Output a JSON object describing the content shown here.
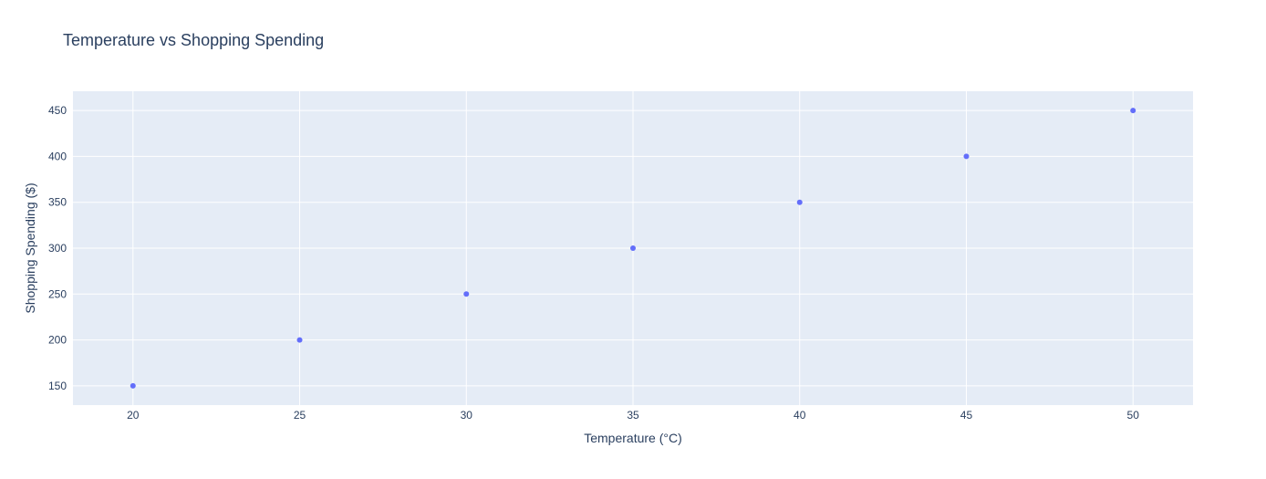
{
  "chart_data": {
    "type": "scatter",
    "title": "Temperature vs Shopping Spending",
    "xlabel": "Temperature (°C)",
    "ylabel": "Shopping Spending ($)",
    "x": [
      20,
      25,
      30,
      35,
      40,
      45,
      50
    ],
    "y": [
      150,
      200,
      250,
      300,
      350,
      400,
      450
    ],
    "xlim": [
      18.2,
      51.8
    ],
    "ylim": [
      129,
      471
    ],
    "x_ticks": [
      20,
      25,
      30,
      35,
      40,
      45,
      50
    ],
    "y_ticks": [
      150,
      200,
      250,
      300,
      350,
      400,
      450
    ],
    "grid": true,
    "legend": "none",
    "colors": {
      "marker": "#636efa",
      "plot_background": "#e5ecf6",
      "grid": "#ffffff",
      "text": "#2a3f5f"
    }
  }
}
